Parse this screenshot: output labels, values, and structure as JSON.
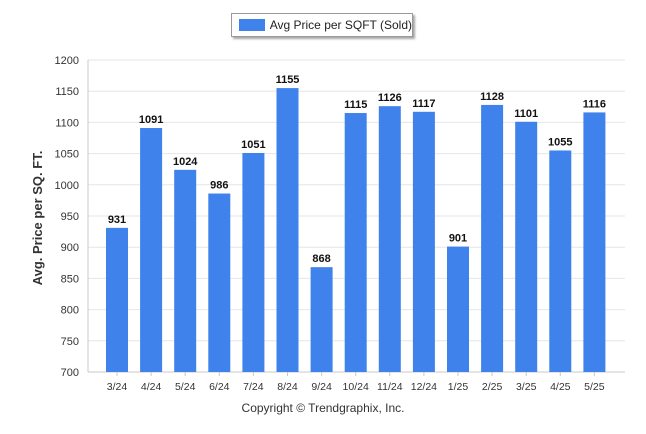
{
  "legend": {
    "label": "Avg Price per SQFT (Sold)"
  },
  "footer": {
    "copyright": "Copyright © Trendgraphix, Inc."
  },
  "colors": {
    "bar": "#3f82ec",
    "grid": "#e6e6e6",
    "axis": "#c8c8c8"
  },
  "chart_data": {
    "type": "bar",
    "title": "",
    "xlabel": "",
    "ylabel": "Avg. Price per SQ. FT.",
    "categories": [
      "3/24",
      "4/24",
      "5/24",
      "6/24",
      "7/24",
      "8/24",
      "9/24",
      "10/24",
      "11/24",
      "12/24",
      "1/25",
      "2/25",
      "3/25",
      "4/25",
      "5/25"
    ],
    "series": [
      {
        "name": "Avg Price per SQFT (Sold)",
        "values": [
          931,
          1091,
          1024,
          986,
          1051,
          1155,
          868,
          1115,
          1126,
          1117,
          901,
          1128,
          1101,
          1055,
          1116
        ]
      }
    ],
    "ylim": [
      700,
      1200
    ],
    "yticks": [
      700,
      750,
      800,
      850,
      900,
      950,
      1000,
      1050,
      1100,
      1150,
      1200
    ],
    "grid": true,
    "legend_position": "top-center",
    "data_labels": true
  }
}
